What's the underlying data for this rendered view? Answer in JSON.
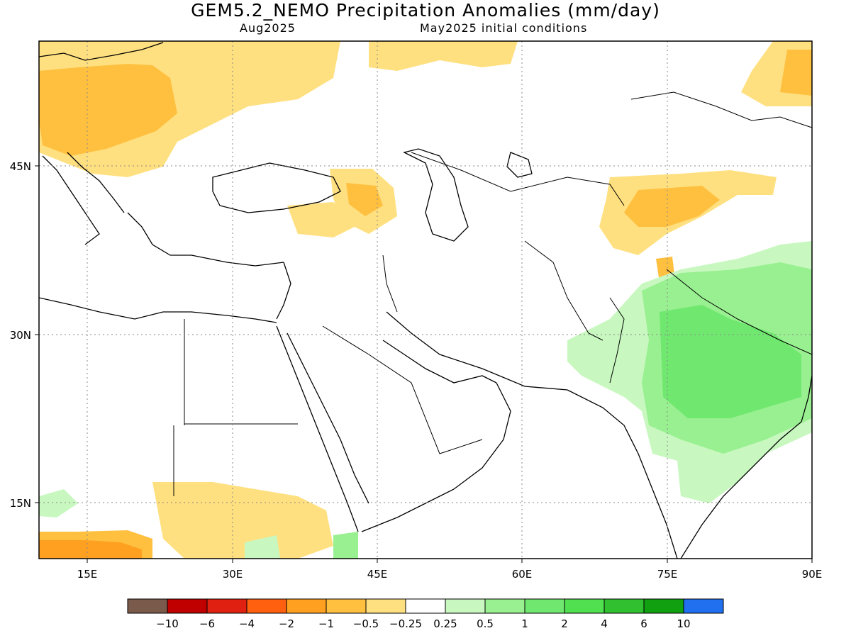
{
  "title": "GEM5.2_NEMO Precipitation Anomalies (mm/day)",
  "subtitle_left": "Aug2025",
  "subtitle_right": "May2025 initial conditions",
  "axes": {
    "x_ticks": [
      "15E",
      "30E",
      "45E",
      "60E",
      "75E",
      "90E"
    ],
    "y_ticks": [
      "45N",
      "30N",
      "15N"
    ],
    "lon_range": [
      10,
      90
    ],
    "lat_range": [
      10,
      55
    ],
    "grid": "dotted"
  },
  "colorbar": {
    "colors": [
      "#7a5a4a",
      "#c00000",
      "#e02010",
      "#ff6010",
      "#ffa020",
      "#ffc040",
      "#ffe080",
      "#ffffff",
      "#c8f8c0",
      "#98f090",
      "#70e870",
      "#50e050",
      "#30c030",
      "#10a010",
      "#2070f0"
    ],
    "labels": [
      "-10",
      "-6",
      "-4",
      "-2",
      "-1",
      "-0.5",
      "-0.25",
      "0.25",
      "0.5",
      "1",
      "2",
      "4",
      "6",
      "10"
    ]
  }
}
